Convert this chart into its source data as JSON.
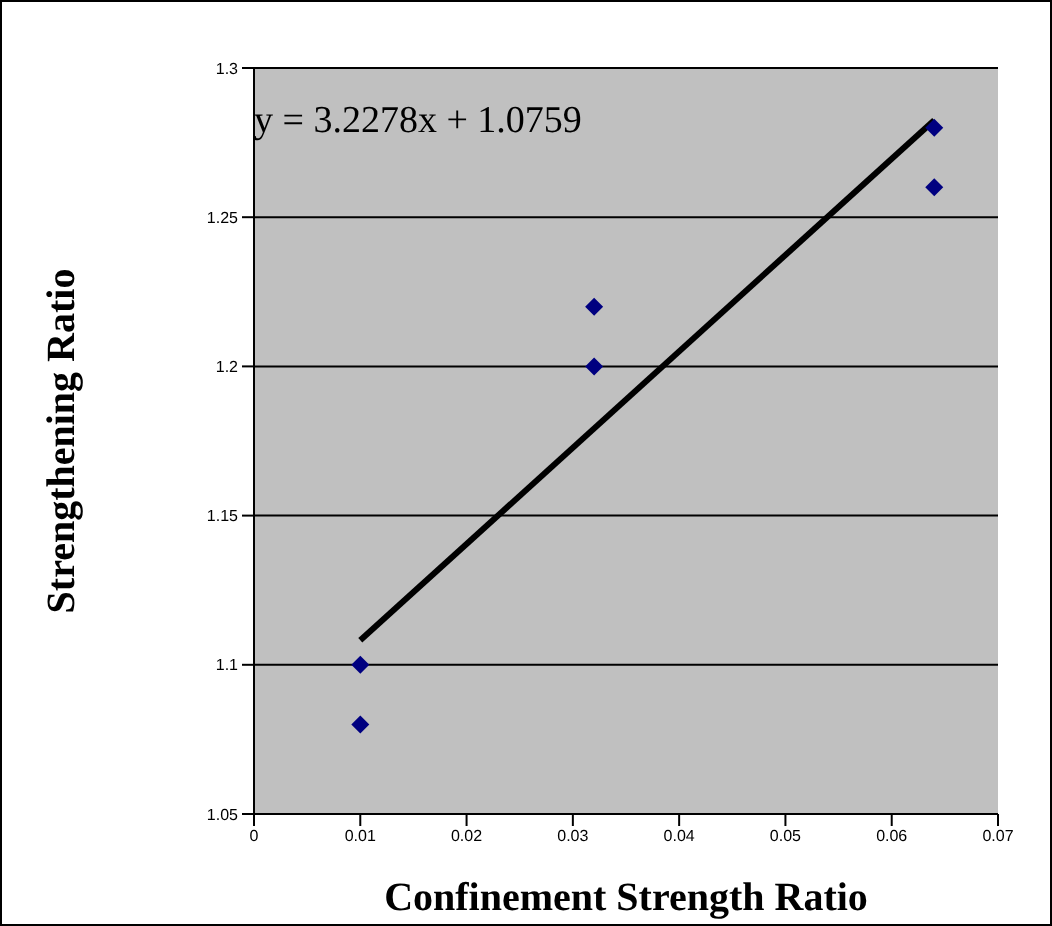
{
  "chart_data": {
    "type": "scatter",
    "xlabel": "Confinement Strength Ratio",
    "ylabel": "Strengthening Ratio",
    "annotations": [
      "y = 3.2278x + 1.0759"
    ],
    "series": [
      {
        "color": "#000080",
        "marker": "diamond",
        "x": [
          0.01,
          0.01,
          0.032,
          0.032,
          0.064,
          0.064
        ],
        "values": [
          1.1,
          1.08,
          1.22,
          1.2,
          1.28,
          1.26
        ]
      },
      {
        "type": "line",
        "color": "#000000",
        "x": [
          0.01,
          0.064
        ],
        "values": [
          1.1082,
          1.2825
        ]
      }
    ],
    "xlim": [
      0,
      0.07
    ],
    "xticks": [
      0,
      0.01,
      0.02,
      0.03,
      0.04,
      0.05,
      0.06,
      0.07
    ],
    "ylim": [
      1.05,
      1.3
    ],
    "yticks": [
      1.05,
      1.1,
      1.15,
      1.2,
      1.25,
      1.3
    ],
    "grid": "y",
    "legend": false
  }
}
